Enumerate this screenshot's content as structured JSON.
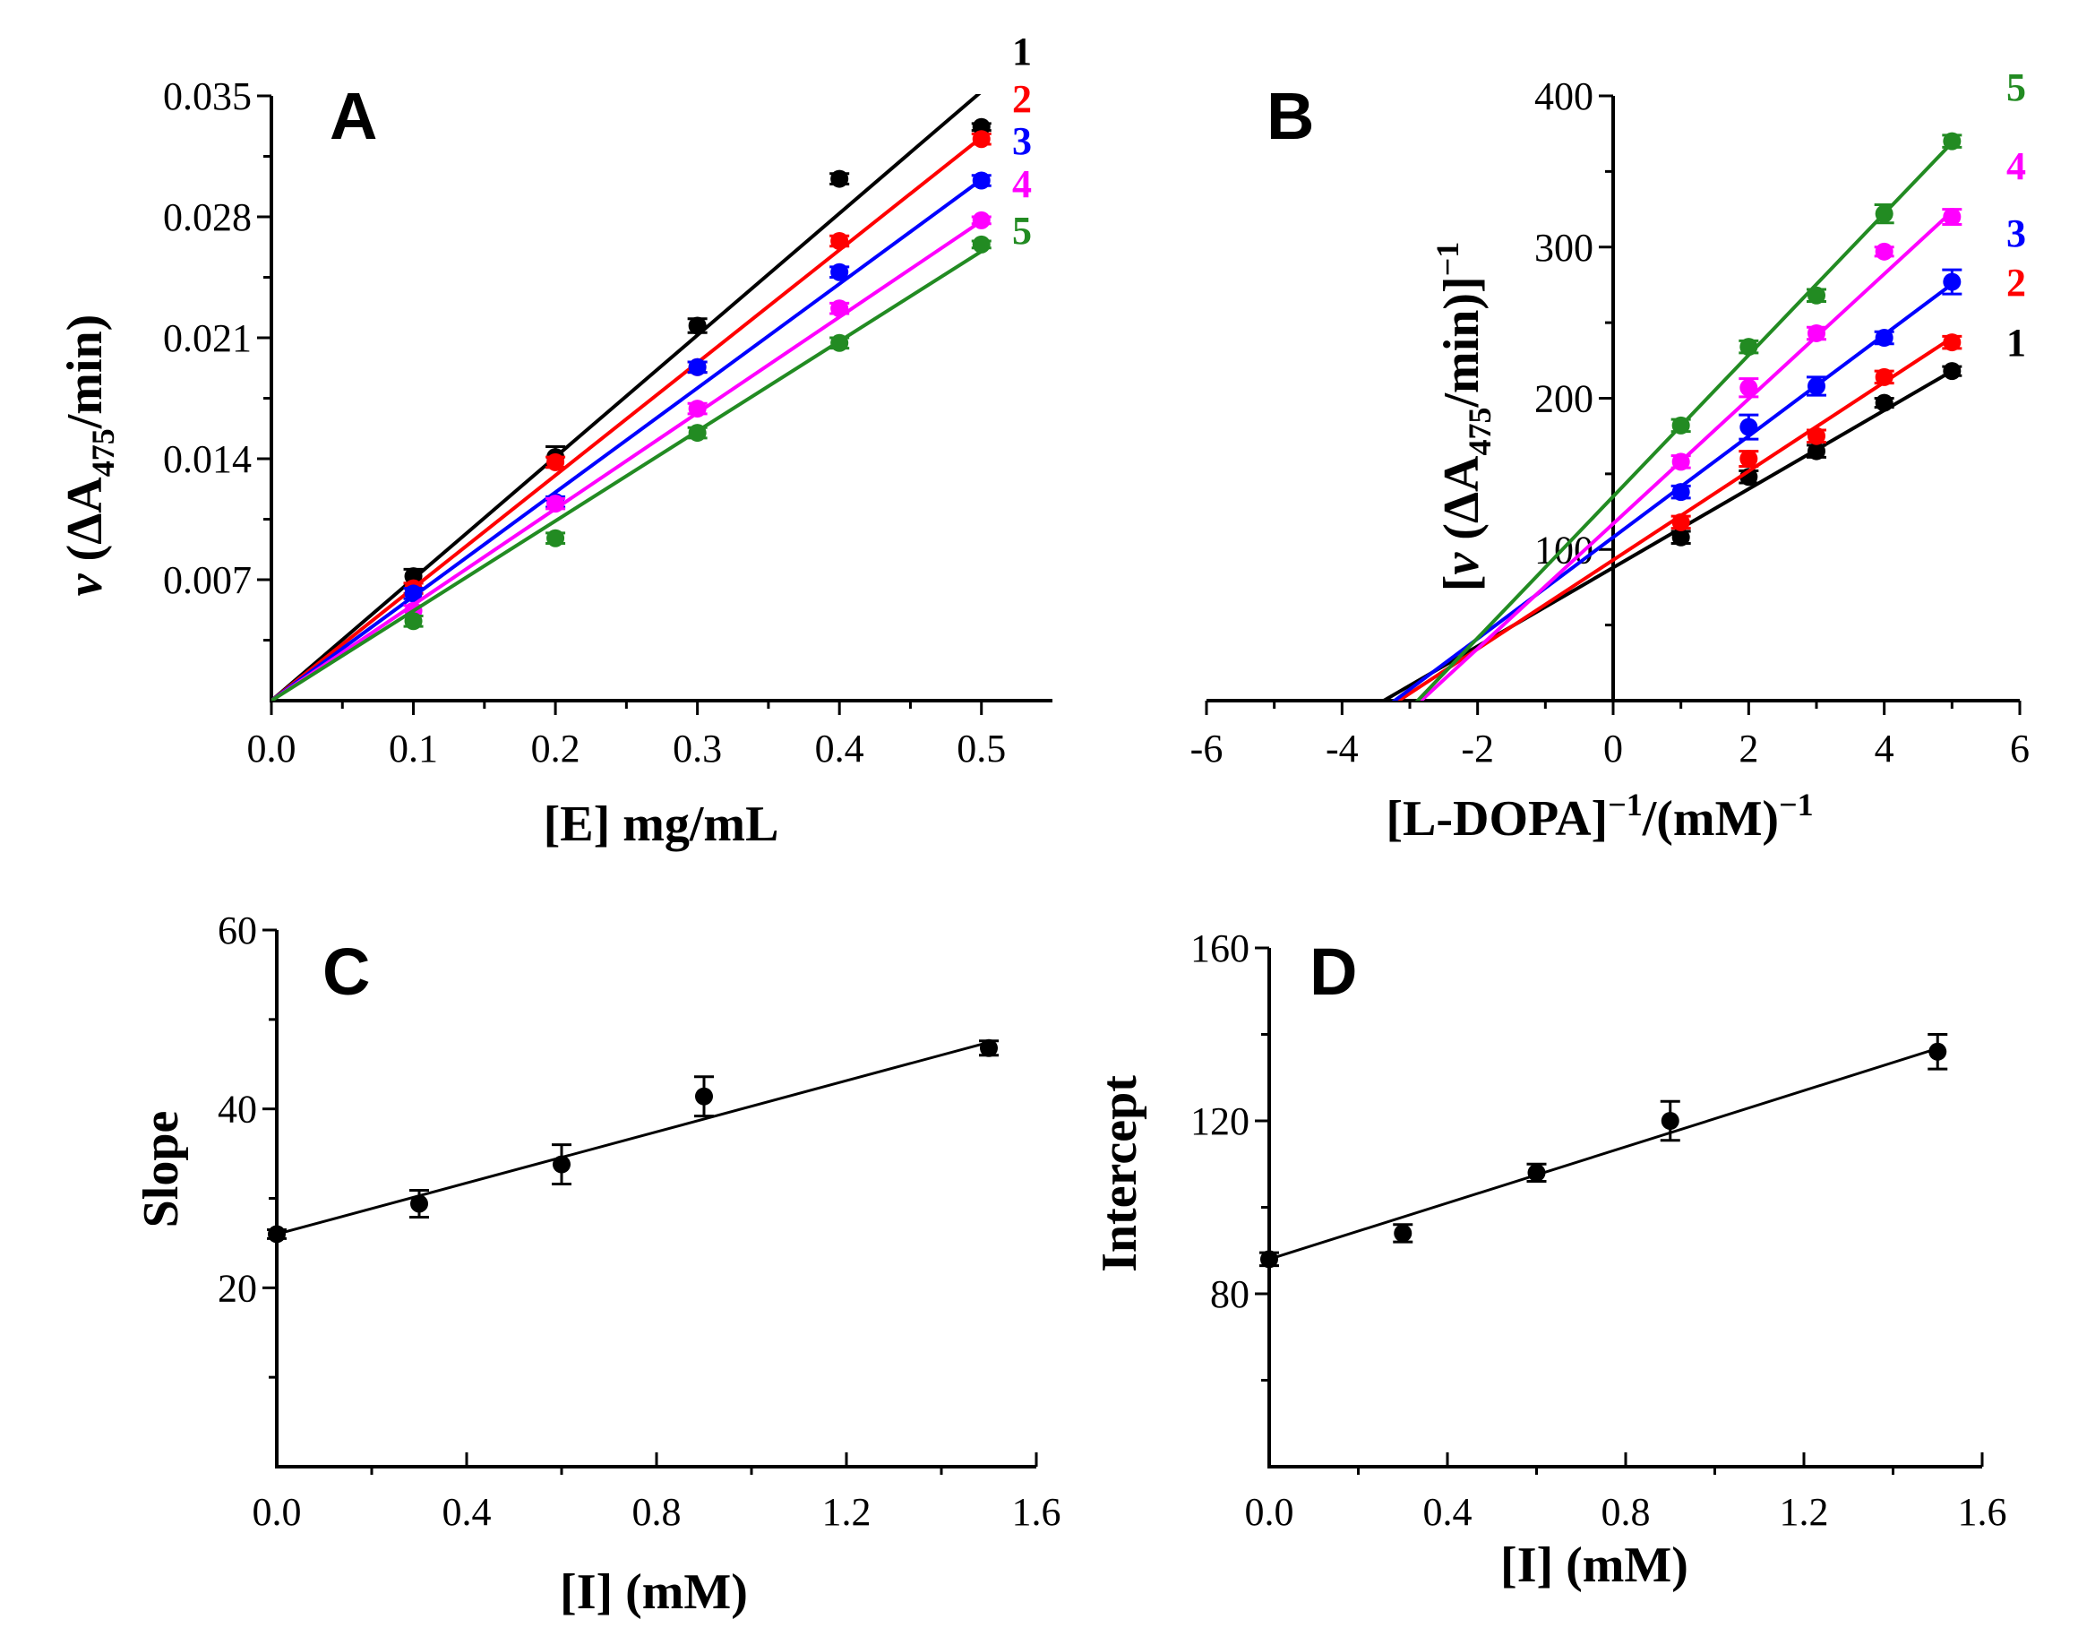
{
  "panels": {
    "A": {
      "letter": "A",
      "ylabel_prefix": "v",
      "ylabel_main": " (ΔA",
      "ylabel_sub": "475",
      "ylabel_suffix": "/min)",
      "xlabel": "[E] mg/mL"
    },
    "B": {
      "letter": "B",
      "ylabel_open": "[",
      "ylabel_prefix": "v",
      "ylabel_main": " (ΔA",
      "ylabel_sub": "475",
      "ylabel_suffix": "/min)]",
      "ylabel_sup": "−1",
      "xlabel_main": "[L-DOPA]",
      "xlabel_sup1": "−1",
      "xlabel_mid": "/(mM)",
      "xlabel_sup2": "−1"
    },
    "C": {
      "letter": "C",
      "ylabel": "Slope",
      "xlabel": "[I] (mM)"
    },
    "D": {
      "letter": "D",
      "ylabel": "Intercept",
      "xlabel": "[I] (mM)"
    }
  },
  "colors": {
    "s1": "#000000",
    "s2": "#ff0000",
    "s3": "#0000ff",
    "s4": "#ff00ff",
    "s5": "#228b22"
  },
  "chart_data": [
    {
      "id": "A",
      "type": "scatter",
      "title": "",
      "xlabel": "[E] mg/mL",
      "ylabel": "v (ΔA475/min)",
      "xlim": [
        0,
        0.55
      ],
      "ylim": [
        0,
        0.035
      ],
      "xticks": [
        0.0,
        0.1,
        0.2,
        0.3,
        0.4,
        0.5
      ],
      "xtick_labels": [
        "0.0",
        "0.1",
        "0.2",
        "0.3",
        "0.4",
        "0.5"
      ],
      "yticks": [
        0.007,
        0.014,
        0.021,
        0.028,
        0.035
      ],
      "ytick_labels": [
        "0.007",
        "0.014",
        "0.021",
        "0.028",
        "0.035"
      ],
      "series": [
        {
          "name": "1",
          "color": "#000000",
          "x": [
            0.1,
            0.2,
            0.3,
            0.4,
            0.5
          ],
          "y": [
            0.0072,
            0.0141,
            0.0217,
            0.0302,
            0.0332
          ],
          "err": [
            0.0004,
            0.0006,
            0.0004,
            0.0003,
            0.0002
          ],
          "fit": {
            "slope": 0.0705,
            "intercept": 0.0
          }
        },
        {
          "name": "2",
          "color": "#ff0000",
          "x": [
            0.1,
            0.2,
            0.3,
            0.4,
            0.5
          ],
          "y": [
            0.0065,
            0.0138,
            0.0193,
            0.0266,
            0.0325
          ],
          "err": [
            0.0003,
            0.0003,
            0.0003,
            0.0003,
            0.0003
          ],
          "fit": {
            "slope": 0.0652,
            "intercept": 0.0
          }
        },
        {
          "name": "3",
          "color": "#0000ff",
          "x": [
            0.1,
            0.2,
            0.3,
            0.4,
            0.5
          ],
          "y": [
            0.0062,
            0.0115,
            0.0193,
            0.0248,
            0.0301
          ],
          "err": [
            0.0003,
            0.0003,
            0.0003,
            0.0003,
            0.0003
          ],
          "fit": {
            "slope": 0.0603,
            "intercept": 0.0
          }
        },
        {
          "name": "4",
          "color": "#ff00ff",
          "x": [
            0.1,
            0.2,
            0.3,
            0.4,
            0.5
          ],
          "y": [
            0.0052,
            0.0114,
            0.0169,
            0.0227,
            0.0278
          ],
          "err": [
            0.0003,
            0.0003,
            0.0003,
            0.0003,
            0.0002
          ],
          "fit": {
            "slope": 0.0555,
            "intercept": 0.0
          }
        },
        {
          "name": "5",
          "color": "#228b22",
          "x": [
            0.1,
            0.2,
            0.3,
            0.4,
            0.5
          ],
          "y": [
            0.0046,
            0.0094,
            0.0155,
            0.0207,
            0.0264
          ],
          "err": [
            0.0003,
            0.0003,
            0.0003,
            0.0003,
            0.0002
          ],
          "fit": {
            "slope": 0.052,
            "intercept": 0.0
          }
        }
      ]
    },
    {
      "id": "B",
      "type": "scatter",
      "title": "",
      "xlabel": "[L-DOPA]−1/(mM)−1",
      "ylabel": "[v (ΔA475/min)]−1",
      "xlim": [
        -6,
        6
      ],
      "ylim": [
        0,
        400
      ],
      "xticks": [
        -6,
        -4,
        -2,
        0,
        2,
        4,
        6
      ],
      "xtick_labels": [
        "-6",
        "-4",
        "-2",
        "0",
        "2",
        "4",
        "6"
      ],
      "yticks": [
        100,
        200,
        300,
        400
      ],
      "ytick_labels": [
        "100",
        "200",
        "300",
        "400"
      ],
      "series": [
        {
          "name": "1",
          "color": "#000000",
          "x": [
            1,
            2,
            3,
            4,
            5
          ],
          "y": [
            108,
            148,
            165,
            197,
            218
          ],
          "err": [
            4,
            4,
            4,
            3,
            3
          ],
          "fit": {
            "slope": 26.0,
            "intercept": 88.0
          }
        },
        {
          "name": "2",
          "color": "#ff0000",
          "x": [
            1,
            2,
            3,
            4,
            5
          ],
          "y": [
            118,
            160,
            175,
            214,
            237
          ],
          "err": [
            4,
            5,
            4,
            4,
            4
          ],
          "fit": {
            "slope": 29.4,
            "intercept": 93.0
          }
        },
        {
          "name": "3",
          "color": "#0000ff",
          "x": [
            1,
            2,
            3,
            4,
            5
          ],
          "y": [
            138,
            181,
            208,
            240,
            277
          ],
          "err": [
            4,
            8,
            6,
            4,
            8
          ],
          "fit": {
            "slope": 33.5,
            "intercept": 108.0
          }
        },
        {
          "name": "4",
          "color": "#ff00ff",
          "x": [
            1,
            2,
            3,
            4,
            5
          ],
          "y": [
            158,
            207,
            243,
            297,
            320
          ],
          "err": [
            4,
            6,
            4,
            3,
            5
          ],
          "fit": {
            "slope": 41.3,
            "intercept": 117.0
          }
        },
        {
          "name": "5",
          "color": "#228b22",
          "x": [
            1,
            2,
            3,
            4,
            5
          ],
          "y": [
            182,
            234,
            268,
            322,
            370
          ],
          "err": [
            4,
            4,
            4,
            6,
            4
          ],
          "fit": {
            "slope": 46.8,
            "intercept": 135.0
          }
        }
      ]
    },
    {
      "id": "C",
      "type": "scatter",
      "title": "",
      "xlabel": "[I] (mM)",
      "ylabel": "Slope",
      "xlim": [
        0,
        1.6
      ],
      "ylim": [
        0,
        60
      ],
      "xticks": [
        0.0,
        0.4,
        0.8,
        1.2,
        1.6
      ],
      "xtick_labels": [
        "0.0",
        "0.4",
        "0.8",
        "1.2",
        "1.6"
      ],
      "yticks": [
        20,
        40,
        60
      ],
      "ytick_labels": [
        "20",
        "40",
        "60"
      ],
      "series": [
        {
          "name": "Slope",
          "color": "#000000",
          "x": [
            0.0,
            0.3,
            0.6,
            0.9,
            1.5
          ],
          "y": [
            26.0,
            29.4,
            33.8,
            41.4,
            46.8
          ],
          "err": [
            0.5,
            1.5,
            2.2,
            2.2,
            0.8
          ],
          "fit": {
            "slope": 14.3,
            "intercept": 26.0
          }
        }
      ]
    },
    {
      "id": "D",
      "type": "scatter",
      "title": "",
      "xlabel": "[I] (mM)",
      "ylabel": "Intercept",
      "xlim": [
        0,
        1.6
      ],
      "ylim": [
        40,
        160
      ],
      "xticks": [
        0.0,
        0.4,
        0.8,
        1.2,
        1.6
      ],
      "xtick_labels": [
        "0.0",
        "0.4",
        "0.8",
        "1.2",
        "1.6"
      ],
      "yticks": [
        80,
        120,
        160
      ],
      "ytick_labels": [
        "80",
        "120",
        "160"
      ],
      "series": [
        {
          "name": "Intercept",
          "color": "#000000",
          "x": [
            0.0,
            0.3,
            0.6,
            0.9,
            1.5
          ],
          "y": [
            88.0,
            94.0,
            108.0,
            120.0,
            136.0
          ],
          "err": [
            1.5,
            2.0,
            2.0,
            4.5,
            4.0
          ],
          "fit": {
            "slope": 32.5,
            "intercept": 88.0
          }
        }
      ]
    }
  ]
}
